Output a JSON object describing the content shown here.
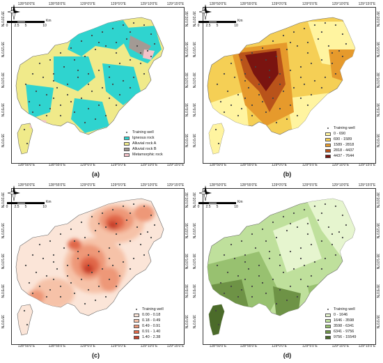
{
  "ticks": {
    "top": [
      "128°50'0\"E",
      "128°55'0\"E",
      "129°0'0\"E",
      "129°5'0\"E",
      "129°10'0\"E",
      "129°15'0\"E"
    ],
    "bottom": [
      "128°50'0\"E",
      "128°55'0\"E",
      "129°0'0\"E",
      "129°5'0\"E",
      "129°10'0\"E",
      "129°15'0\"E"
    ],
    "left": [
      "35°20'0\"N",
      "35°15'0\"N",
      "35°10'0\"N",
      "35°5'0\"N",
      "35°0'0\"N"
    ],
    "right": [
      "35°20'0\"N",
      "35°15'0\"N",
      "35°10'0\"N",
      "35°5'0\"N",
      "35°0'0\"N"
    ]
  },
  "scalebar": {
    "unit": "Km",
    "labels": [
      "0",
      "2.5",
      "5",
      "10"
    ]
  },
  "training_well_label": "Training well",
  "panels": [
    {
      "caption": "(a)",
      "legend": [
        {
          "label": "Igneous rock",
          "color": "#2fd4cf"
        },
        {
          "label": "Alluvial rock A",
          "color": "#f0ea8a"
        },
        {
          "label": "Alluvial rock B",
          "color": "#a39a94"
        },
        {
          "label": "Metamorphic rock",
          "color": "#f4c3c9"
        }
      ]
    },
    {
      "caption": "(b)",
      "legend": [
        {
          "label": "0 - 690",
          "color": "#fff4a0"
        },
        {
          "label": "690 - 1589",
          "color": "#f5cf55"
        },
        {
          "label": "1589 - 2818",
          "color": "#e69a2c"
        },
        {
          "label": "2818 - 4437",
          "color": "#b9531a"
        },
        {
          "label": "4437 - 7644",
          "color": "#7a1410"
        }
      ]
    },
    {
      "caption": "(c)",
      "legend": [
        {
          "label": "0.00 - 0.18",
          "color": "#fbe5d8"
        },
        {
          "label": "0.18 - 0.49",
          "color": "#f6c2a8"
        },
        {
          "label": "0.49 - 0.91",
          "color": "#ee9878"
        },
        {
          "label": "0.91 - 1.40",
          "color": "#e16848"
        },
        {
          "label": "1.40 - 2.38",
          "color": "#c8412a"
        }
      ]
    },
    {
      "caption": "(d)",
      "legend": [
        {
          "label": "0 - 1646",
          "color": "#e6f5cf"
        },
        {
          "label": "1646 - 3598",
          "color": "#bfe09c"
        },
        {
          "label": "3598 - 6341",
          "color": "#98c170"
        },
        {
          "label": "6341 - 9756",
          "color": "#6e9346"
        },
        {
          "label": "9756 - 15549",
          "color": "#4b6b2a"
        }
      ]
    }
  ]
}
